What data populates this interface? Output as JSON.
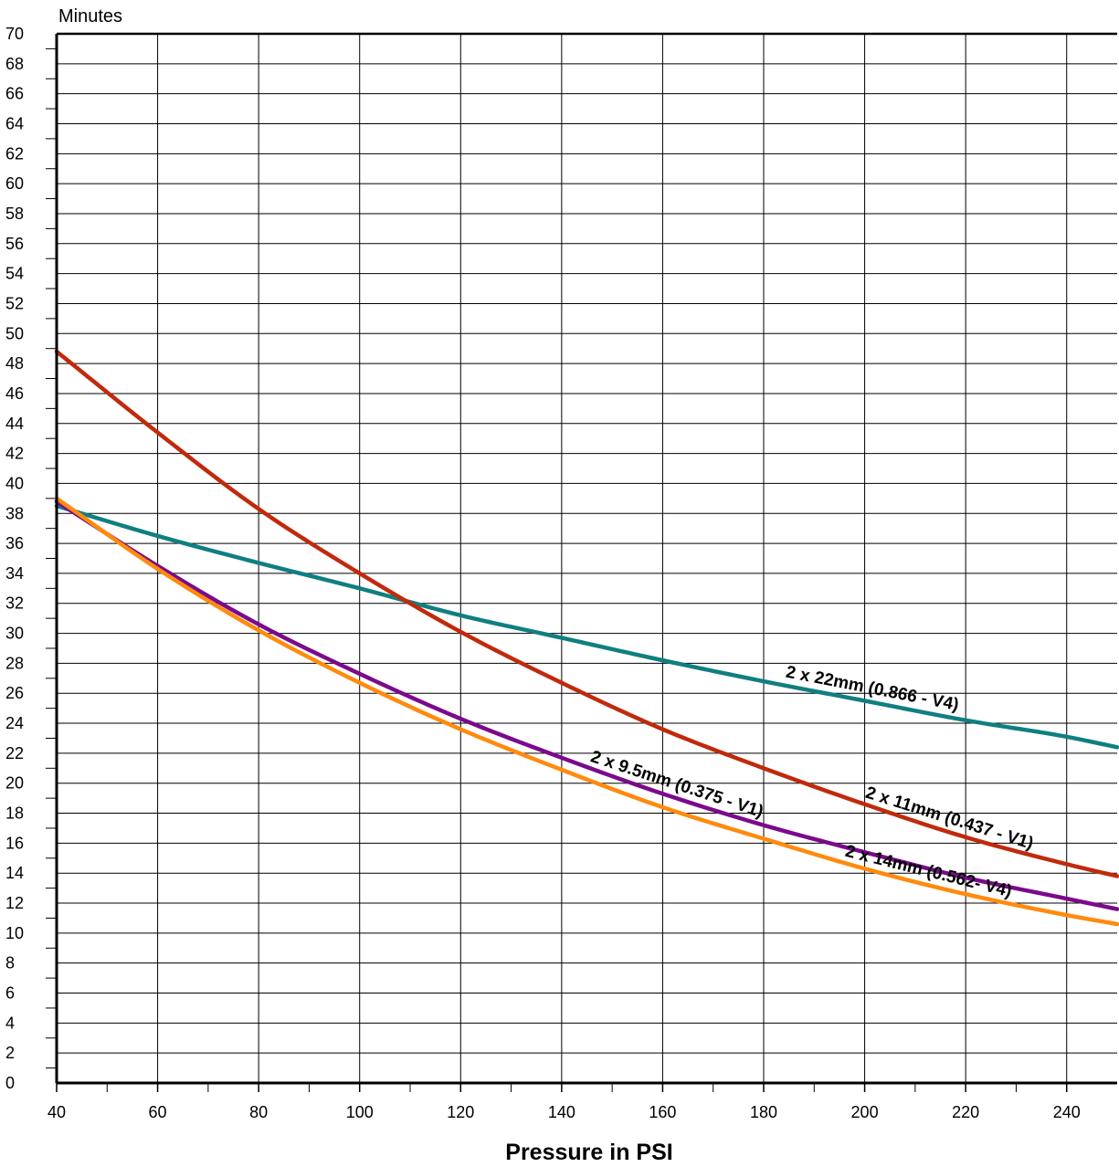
{
  "chart_data": {
    "type": "line",
    "title": "",
    "ylabel": "Minutes",
    "xlabel": "Pressure in PSI",
    "xlim": [
      40,
      250
    ],
    "ylim": [
      0,
      70
    ],
    "x_ticks": [
      40,
      60,
      80,
      100,
      120,
      140,
      160,
      180,
      200,
      220,
      240
    ],
    "y_ticks": [
      0,
      2,
      4,
      6,
      8,
      10,
      12,
      14,
      16,
      18,
      20,
      22,
      24,
      26,
      28,
      30,
      32,
      34,
      36,
      38,
      40,
      42,
      44,
      46,
      48,
      50,
      52,
      54,
      56,
      58,
      60,
      62,
      64,
      66,
      68,
      70
    ],
    "grid": true,
    "legend": "none (labels placed along lines)",
    "series": [
      {
        "name": "2 x 22mm (0.866 - V4)",
        "color": "#0f7f80",
        "x": [
          40,
          60,
          80,
          100,
          120,
          140,
          160,
          180,
          200,
          220,
          240,
          250
        ],
        "y": [
          38.5,
          36.5,
          34.7,
          33.0,
          31.2,
          29.7,
          28.2,
          26.8,
          25.5,
          24.2,
          23.1,
          22.4
        ]
      },
      {
        "name": "2 x 11mm (0.437 - V1)",
        "color": "#c02a0c",
        "x": [
          40,
          60,
          80,
          100,
          120,
          140,
          160,
          180,
          200,
          220,
          240,
          250
        ],
        "y": [
          48.8,
          43.4,
          38.3,
          34.0,
          30.1,
          26.7,
          23.6,
          21.0,
          18.6,
          16.4,
          14.6,
          13.8
        ]
      },
      {
        "name": "2 x 9.5mm (0.375 - V1)",
        "color": "#7b0a8c",
        "x": [
          40,
          60,
          80,
          100,
          120,
          140,
          160,
          180,
          200,
          220,
          240,
          250
        ],
        "y": [
          38.8,
          34.5,
          30.6,
          27.3,
          24.3,
          21.7,
          19.3,
          17.2,
          15.4,
          13.7,
          12.3,
          11.6
        ]
      },
      {
        "name": "2 x 14mm (0.562- V4)",
        "color": "#ff8a0c",
        "x": [
          40,
          60,
          80,
          100,
          120,
          140,
          160,
          180,
          200,
          220,
          240,
          250
        ],
        "y": [
          39.0,
          34.3,
          30.2,
          26.7,
          23.6,
          20.9,
          18.4,
          16.3,
          14.3,
          12.6,
          11.2,
          10.6
        ]
      }
    ],
    "annotations": [
      {
        "series": 0,
        "at_x": 201,
        "text": "2 x 22mm (0.866 - V4)"
      },
      {
        "series": 1,
        "at_x": 216,
        "text": "2 x 11mm (0.437 - V1)"
      },
      {
        "series": 2,
        "at_x": 162,
        "text": "2 x 9.5mm (0.375 - V1)"
      },
      {
        "series": 3,
        "at_x": 212,
        "text": "2 x 14mm (0.562- V4)"
      }
    ]
  }
}
